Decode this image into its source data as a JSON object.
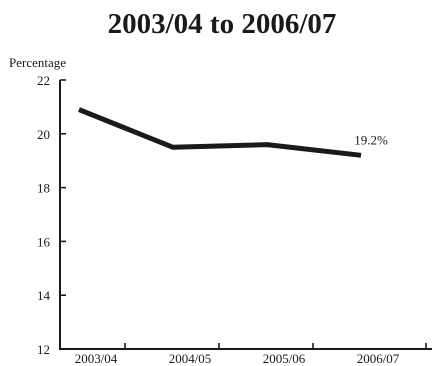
{
  "chart_data": {
    "type": "line",
    "title": "2003/04 to 2006/07",
    "ylabel": "Percentage",
    "xlabel": "",
    "categories": [
      "2003/04",
      "2004/05",
      "2005/06",
      "2006/07"
    ],
    "series": [
      {
        "values": [
          20.9,
          19.5,
          19.6,
          19.2
        ]
      }
    ],
    "ylim": [
      12,
      22
    ],
    "yticks": [
      "12",
      "14",
      "16",
      "18",
      "20",
      "22"
    ],
    "annotations": [
      {
        "category": "2006/07",
        "value": 19.2,
        "text": "19.2%"
      }
    ],
    "grid": false,
    "legend": "none",
    "line_color": "#1a1a1a"
  }
}
